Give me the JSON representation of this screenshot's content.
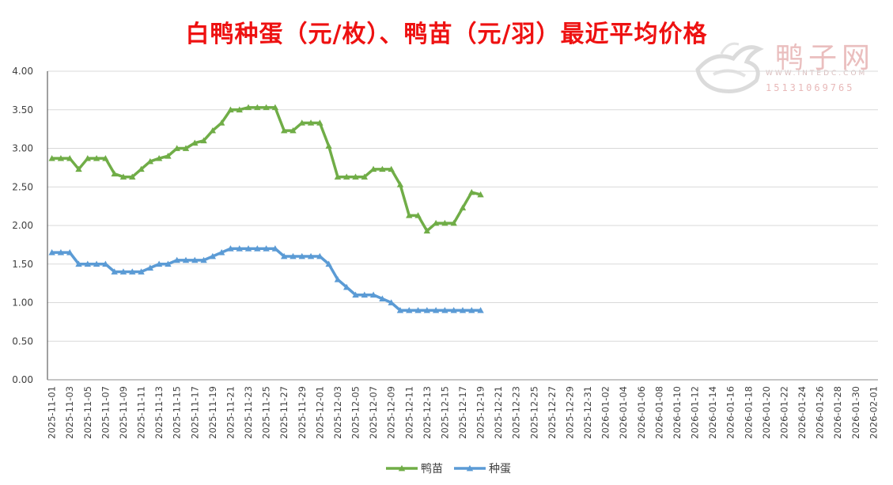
{
  "chart_data": {
    "type": "line",
    "title": "白鸭种蛋（元/枚）、鸭苗（元/羽）最近平均价格",
    "ylim": [
      0,
      4
    ],
    "yticks": [
      "0.00",
      "0.50",
      "1.00",
      "1.50",
      "2.00",
      "2.50",
      "3.00",
      "3.50",
      "4.00"
    ],
    "x_start": "2025-11-01",
    "x_end": "2026-02-01",
    "x_tick_labels": [
      "2025-11-01",
      "2025-11-03",
      "2025-11-05",
      "2025-11-07",
      "2025-11-09",
      "2025-11-11",
      "2025-11-13",
      "2025-11-15",
      "2025-11-17",
      "2025-11-19",
      "2025-11-21",
      "2025-11-23",
      "2025-11-25",
      "2025-11-27",
      "2025-11-29",
      "2025-12-01",
      "2025-12-03",
      "2025-12-05",
      "2025-12-07",
      "2025-12-09",
      "2025-12-11",
      "2025-12-13",
      "2025-12-15",
      "2025-12-17",
      "2025-12-19",
      "2025-12-21",
      "2025-12-23",
      "2025-12-25",
      "2025-12-27",
      "2025-12-29",
      "2025-12-31",
      "2026-01-02",
      "2026-01-04",
      "2026-01-06",
      "2026-01-08",
      "2026-01-10",
      "2026-01-12",
      "2026-01-14",
      "2026-01-16",
      "2026-01-18",
      "2026-01-20",
      "2026-01-22",
      "2026-01-24",
      "2026-01-26",
      "2026-01-28",
      "2026-01-30",
      "2026-02-01"
    ],
    "grid": true,
    "legend_position": "bottom",
    "series": [
      {
        "name": "鸭苗",
        "color": "#70ad47",
        "marker": "triangle",
        "x": [
          "2025-11-01",
          "2025-11-02",
          "2025-11-03",
          "2025-11-04",
          "2025-11-05",
          "2025-11-06",
          "2025-11-07",
          "2025-11-08",
          "2025-11-09",
          "2025-11-10",
          "2025-11-11",
          "2025-11-12",
          "2025-11-13",
          "2025-11-14",
          "2025-11-15",
          "2025-11-16",
          "2025-11-17",
          "2025-11-18",
          "2025-11-19",
          "2025-11-20",
          "2025-11-21",
          "2025-11-22",
          "2025-11-23",
          "2025-11-24",
          "2025-11-25",
          "2025-11-26",
          "2025-11-27",
          "2025-11-28",
          "2025-11-29",
          "2025-11-30",
          "2025-12-01",
          "2025-12-02",
          "2025-12-03",
          "2025-12-04",
          "2025-12-05",
          "2025-12-06",
          "2025-12-07",
          "2025-12-08",
          "2025-12-09",
          "2025-12-10",
          "2025-12-11",
          "2025-12-12",
          "2025-12-13",
          "2025-12-14",
          "2025-12-15",
          "2025-12-16",
          "2025-12-17",
          "2025-12-18",
          "2025-12-19"
        ],
        "values": [
          2.87,
          2.87,
          2.87,
          2.73,
          2.87,
          2.87,
          2.87,
          2.67,
          2.63,
          2.63,
          2.73,
          2.83,
          2.87,
          2.9,
          3.0,
          3.0,
          3.07,
          3.1,
          3.23,
          3.33,
          3.5,
          3.5,
          3.53,
          3.53,
          3.53,
          3.53,
          3.23,
          3.23,
          3.33,
          3.33,
          3.33,
          3.03,
          2.63,
          2.63,
          2.63,
          2.63,
          2.73,
          2.73,
          2.73,
          2.53,
          2.13,
          2.13,
          1.93,
          2.03,
          2.03,
          2.03,
          2.23,
          2.43,
          2.4
        ]
      },
      {
        "name": "种蛋",
        "color": "#5b9bd5",
        "marker": "triangle",
        "x": [
          "2025-11-01",
          "2025-11-02",
          "2025-11-03",
          "2025-11-04",
          "2025-11-05",
          "2025-11-06",
          "2025-11-07",
          "2025-11-08",
          "2025-11-09",
          "2025-11-10",
          "2025-11-11",
          "2025-11-12",
          "2025-11-13",
          "2025-11-14",
          "2025-11-15",
          "2025-11-16",
          "2025-11-17",
          "2025-11-18",
          "2025-11-19",
          "2025-11-20",
          "2025-11-21",
          "2025-11-22",
          "2025-11-23",
          "2025-11-24",
          "2025-11-25",
          "2025-11-26",
          "2025-11-27",
          "2025-11-28",
          "2025-11-29",
          "2025-11-30",
          "2025-12-01",
          "2025-12-02",
          "2025-12-03",
          "2025-12-04",
          "2025-12-05",
          "2025-12-06",
          "2025-12-07",
          "2025-12-08",
          "2025-12-09",
          "2025-12-10",
          "2025-12-11",
          "2025-12-12",
          "2025-12-13",
          "2025-12-14",
          "2025-12-15",
          "2025-12-16",
          "2025-12-17",
          "2025-12-18",
          "2025-12-19"
        ],
        "values": [
          1.65,
          1.65,
          1.65,
          1.5,
          1.5,
          1.5,
          1.5,
          1.4,
          1.4,
          1.4,
          1.4,
          1.45,
          1.5,
          1.5,
          1.55,
          1.55,
          1.55,
          1.55,
          1.6,
          1.65,
          1.7,
          1.7,
          1.7,
          1.7,
          1.7,
          1.7,
          1.6,
          1.6,
          1.6,
          1.6,
          1.6,
          1.5,
          1.3,
          1.2,
          1.1,
          1.1,
          1.1,
          1.05,
          1.0,
          0.9,
          0.9,
          0.9,
          0.9,
          0.9,
          0.9,
          0.9,
          0.9,
          0.9,
          0.9
        ]
      }
    ]
  },
  "watermark": {
    "brand": "鸭子网",
    "site": "WWW.INTEDC.COM",
    "phone": "15131069765",
    "logo_icon": "duck-logo-icon"
  }
}
